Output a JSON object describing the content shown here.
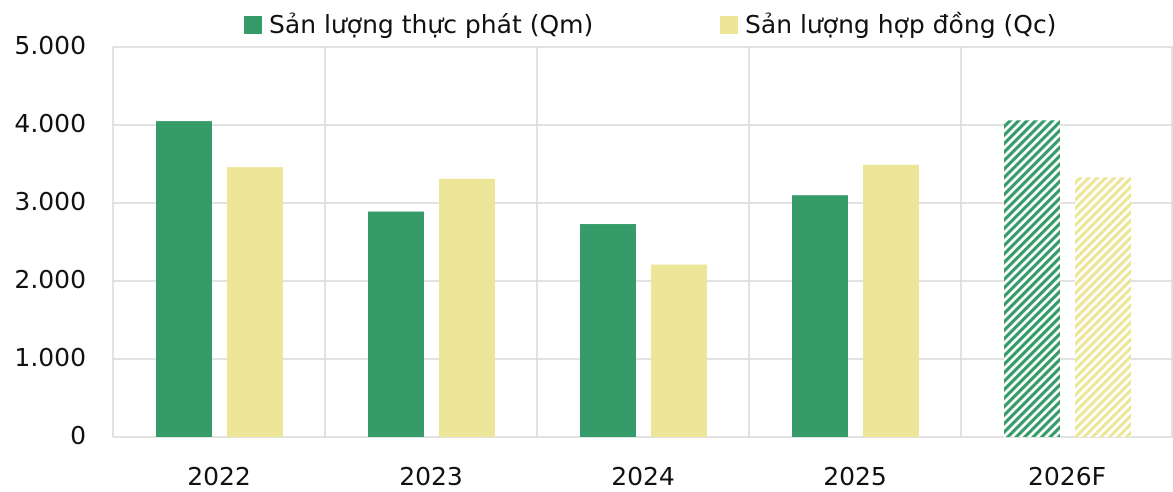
{
  "chart_data": {
    "type": "bar",
    "categories": [
      "2022",
      "2023",
      "2024",
      "2025",
      "2026F"
    ],
    "series": [
      {
        "name": "Sản lượng thực phát (Qm)",
        "color": "#359b68",
        "values": [
          4050,
          2890,
          2730,
          3100,
          4060
        ]
      },
      {
        "name": "Sản lượng hợp đồng (Qc)",
        "color": "#ede597",
        "values": [
          3460,
          3310,
          2210,
          3490,
          3330
        ]
      }
    ],
    "hatched": [
      false,
      false,
      false,
      false,
      true
    ],
    "ylim": [
      0,
      5000
    ],
    "yticks": [
      0,
      {
        "value": 1000,
        "label": "1.000"
      },
      {
        "value": 2000,
        "label": "2.000"
      },
      {
        "value": 3000,
        "label": "3.000"
      },
      {
        "value": 4000,
        "label": "4.000"
      },
      {
        "value": 5000,
        "label": "5.000"
      }
    ],
    "grid": true,
    "legend": "top"
  }
}
